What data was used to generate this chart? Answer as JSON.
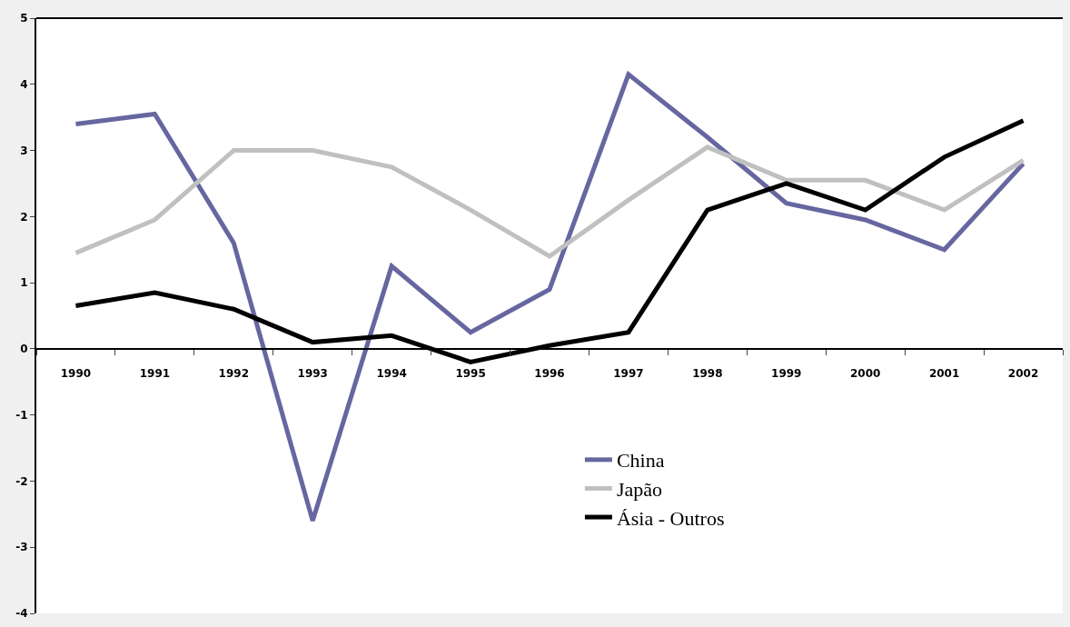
{
  "chart_data": {
    "type": "line",
    "categories": [
      "1990",
      "1991",
      "1992",
      "1993",
      "1994",
      "1995",
      "1996",
      "1997",
      "1998",
      "1999",
      "2000",
      "2001",
      "2002"
    ],
    "series": [
      {
        "name": "China",
        "color": "#6666a0",
        "values": [
          3.4,
          3.55,
          1.6,
          -2.6,
          1.25,
          0.25,
          0.9,
          4.15,
          3.2,
          2.2,
          1.95,
          1.5,
          2.8
        ]
      },
      {
        "name": "Japão",
        "color": "#c0c0c0",
        "values": [
          1.45,
          1.95,
          3.0,
          3.0,
          2.75,
          2.1,
          1.4,
          2.25,
          3.05,
          2.55,
          2.55,
          2.1,
          2.85
        ]
      },
      {
        "name": "Ásia - Outros",
        "color": "#000000",
        "values": [
          0.65,
          0.85,
          0.6,
          0.1,
          0.2,
          -0.2,
          0.05,
          0.25,
          2.1,
          2.5,
          2.1,
          2.9,
          3.45
        ]
      }
    ],
    "ylim": [
      -4,
      5
    ],
    "yticks": [
      -4,
      -3,
      -2,
      -1,
      0,
      1,
      2,
      3,
      4,
      5
    ],
    "legend": "bottom right",
    "marker": "none",
    "line_style": "solid"
  }
}
